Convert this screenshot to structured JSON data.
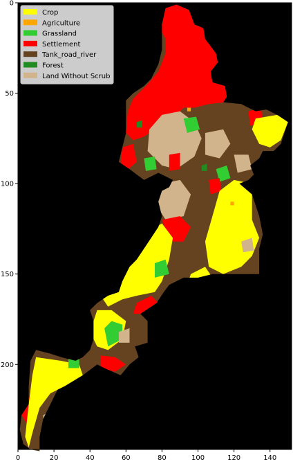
{
  "chart_data": {
    "type": "heatmap",
    "title": "",
    "xlabel": "",
    "ylabel": "",
    "xlim": [
      0,
      152
    ],
    "ylim": [
      247,
      0
    ],
    "x_ticks": [
      0,
      20,
      40,
      60,
      80,
      100,
      120,
      140
    ],
    "y_ticks": [
      0,
      50,
      100,
      150,
      200
    ],
    "background_color": "#000000",
    "grid": false,
    "legend_position": "top-left",
    "classes": [
      {
        "name": "Crop",
        "color": "#ffff00"
      },
      {
        "name": "Agriculture",
        "color": "#ffa500"
      },
      {
        "name": "Grassland",
        "color": "#32cd32"
      },
      {
        "name": "Settlement",
        "color": "#ff0000"
      },
      {
        "name": "Tank_road_river",
        "color": "#654321"
      },
      {
        "name": "Forest",
        "color": "#228b22"
      },
      {
        "name": "Land Without Scrub",
        "color": "#d2b48c"
      }
    ],
    "regions": [
      {
        "class": "Settlement",
        "polygon": [
          [
            78,
            13
          ],
          [
            82,
            3
          ],
          [
            88,
            1
          ],
          [
            95,
            4
          ],
          [
            98,
            12
          ],
          [
            103,
            14
          ],
          [
            104,
            20
          ],
          [
            110,
            28
          ],
          [
            111,
            33
          ],
          [
            107,
            38
          ],
          [
            108,
            44
          ],
          [
            115,
            46
          ],
          [
            116,
            52
          ],
          [
            115,
            55
          ],
          [
            106,
            56
          ],
          [
            98,
            58
          ],
          [
            92,
            58
          ],
          [
            88,
            62
          ],
          [
            82,
            66
          ],
          [
            76,
            70
          ],
          [
            70,
            74
          ],
          [
            64,
            76
          ],
          [
            60,
            72
          ],
          [
            61,
            60
          ],
          [
            64,
            53
          ],
          [
            72,
            45
          ],
          [
            78,
            38
          ],
          [
            82,
            28
          ],
          [
            82,
            20
          ]
        ]
      },
      {
        "class": "Land Without Scrub",
        "polygon": [
          [
            80,
            62
          ],
          [
            90,
            60
          ],
          [
            98,
            66
          ],
          [
            102,
            75
          ],
          [
            98,
            85
          ],
          [
            88,
            92
          ],
          [
            80,
            90
          ],
          [
            72,
            82
          ],
          [
            73,
            70
          ]
        ]
      },
      {
        "class": "Land Without Scrub",
        "polygon": [
          [
            104,
            72
          ],
          [
            114,
            70
          ],
          [
            118,
            78
          ],
          [
            112,
            86
          ],
          [
            104,
            84
          ]
        ]
      },
      {
        "class": "Land Without Scrub",
        "polygon": [
          [
            80,
            100
          ],
          [
            90,
            98
          ],
          [
            96,
            106
          ],
          [
            92,
            118
          ],
          [
            82,
            120
          ],
          [
            77,
            112
          ]
        ]
      },
      {
        "class": "Land Without Scrub",
        "polygon": [
          [
            120,
            84
          ],
          [
            128,
            84
          ],
          [
            130,
            92
          ],
          [
            122,
            94
          ]
        ]
      },
      {
        "class": "Grassland",
        "polygon": [
          [
            92,
            64
          ],
          [
            99,
            63
          ],
          [
            101,
            70
          ],
          [
            94,
            72
          ]
        ]
      },
      {
        "class": "Grassland",
        "polygon": [
          [
            110,
            92
          ],
          [
            116,
            90
          ],
          [
            118,
            97
          ],
          [
            112,
            99
          ]
        ]
      },
      {
        "class": "Grassland",
        "polygon": [
          [
            70,
            86
          ],
          [
            76,
            85
          ],
          [
            77,
            92
          ],
          [
            71,
            93
          ]
        ]
      },
      {
        "class": "Settlement",
        "polygon": [
          [
            58,
            80
          ],
          [
            64,
            78
          ],
          [
            66,
            88
          ],
          [
            60,
            93
          ],
          [
            57,
            88
          ]
        ]
      },
      {
        "class": "Settlement",
        "polygon": [
          [
            84,
            84
          ],
          [
            90,
            83
          ],
          [
            90,
            92
          ],
          [
            84,
            93
          ]
        ]
      },
      {
        "class": "Settlement",
        "polygon": [
          [
            106,
            98
          ],
          [
            112,
            97
          ],
          [
            113,
            104
          ],
          [
            107,
            106
          ]
        ]
      },
      {
        "class": "Settlement",
        "polygon": [
          [
            128,
            60
          ],
          [
            135,
            58
          ],
          [
            136,
            66
          ],
          [
            129,
            68
          ]
        ]
      },
      {
        "class": "Settlement",
        "polygon": [
          [
            80,
            120
          ],
          [
            90,
            118
          ],
          [
            96,
            124
          ],
          [
            92,
            132
          ],
          [
            84,
            132
          ]
        ]
      },
      {
        "class": "Settlement",
        "polygon": [
          [
            66,
            166
          ],
          [
            74,
            162
          ],
          [
            78,
            166
          ],
          [
            70,
            172
          ],
          [
            64,
            172
          ]
        ]
      },
      {
        "class": "Settlement",
        "polygon": [
          [
            46,
            195
          ],
          [
            54,
            196
          ],
          [
            60,
            200
          ],
          [
            54,
            204
          ],
          [
            46,
            202
          ]
        ]
      },
      {
        "class": "Settlement",
        "polygon": [
          [
            6,
            218
          ],
          [
            8,
            218
          ],
          [
            9,
            230
          ],
          [
            5,
            233
          ],
          [
            2,
            228
          ]
        ]
      },
      {
        "class": "Crop",
        "polygon": [
          [
            112,
            104
          ],
          [
            120,
            98
          ],
          [
            130,
            100
          ],
          [
            130,
            120
          ],
          [
            134,
            130
          ],
          [
            130,
            140
          ],
          [
            124,
            146
          ],
          [
            114,
            150
          ],
          [
            106,
            146
          ],
          [
            104,
            132
          ],
          [
            108,
            118
          ]
        ]
      },
      {
        "class": "Crop",
        "polygon": [
          [
            70,
            128
          ],
          [
            80,
            122
          ],
          [
            86,
            130
          ],
          [
            84,
            142
          ],
          [
            80,
            154
          ],
          [
            76,
            160
          ],
          [
            66,
            162
          ],
          [
            58,
            164
          ],
          [
            50,
            168
          ],
          [
            46,
            162
          ],
          [
            52,
            154
          ],
          [
            60,
            146
          ],
          [
            64,
            138
          ]
        ]
      },
      {
        "class": "Crop",
        "polygon": [
          [
            44,
            170
          ],
          [
            52,
            170
          ],
          [
            60,
            176
          ],
          [
            58,
            186
          ],
          [
            50,
            192
          ],
          [
            44,
            190
          ],
          [
            40,
            182
          ]
        ]
      },
      {
        "class": "Crop",
        "polygon": [
          [
            10,
            196
          ],
          [
            24,
            198
          ],
          [
            34,
            200
          ],
          [
            36,
            206
          ],
          [
            26,
            212
          ],
          [
            18,
            216
          ],
          [
            12,
            224
          ],
          [
            8,
            238
          ],
          [
            6,
            246
          ],
          [
            4,
            240
          ],
          [
            6,
            222
          ],
          [
            8,
            206
          ]
        ]
      },
      {
        "class": "Crop",
        "polygon": [
          [
            132,
            64
          ],
          [
            144,
            62
          ],
          [
            150,
            66
          ],
          [
            146,
            76
          ],
          [
            140,
            80
          ],
          [
            134,
            78
          ],
          [
            130,
            70
          ]
        ]
      },
      {
        "class": "Crop",
        "polygon": [
          [
            96,
            150
          ],
          [
            104,
            146
          ],
          [
            108,
            152
          ],
          [
            102,
            158
          ],
          [
            94,
            156
          ]
        ]
      },
      {
        "class": "Grassland",
        "polygon": [
          [
            48,
            180
          ],
          [
            52,
            176
          ],
          [
            58,
            178
          ],
          [
            58,
            186
          ],
          [
            50,
            190
          ]
        ]
      },
      {
        "class": "Grassland",
        "polygon": [
          [
            76,
            144
          ],
          [
            82,
            142
          ],
          [
            84,
            150
          ],
          [
            76,
            152
          ]
        ]
      },
      {
        "class": "Grassland",
        "polygon": [
          [
            28,
            196
          ],
          [
            34,
            196
          ],
          [
            34,
            202
          ],
          [
            28,
            202
          ]
        ]
      },
      {
        "class": "Land Without Scrub",
        "polygon": [
          [
            56,
            182
          ],
          [
            62,
            180
          ],
          [
            62,
            188
          ],
          [
            56,
            188
          ]
        ]
      },
      {
        "class": "Land Without Scrub",
        "polygon": [
          [
            14,
            228
          ],
          [
            18,
            226
          ],
          [
            19,
            232
          ],
          [
            14,
            233
          ]
        ]
      },
      {
        "class": "Land Without Scrub",
        "polygon": [
          [
            124,
            132
          ],
          [
            130,
            130
          ],
          [
            131,
            137
          ],
          [
            125,
            138
          ]
        ]
      },
      {
        "class": "Forest",
        "polygon": [
          [
            66,
            66
          ],
          [
            69,
            65
          ],
          [
            69,
            69
          ],
          [
            66,
            69
          ]
        ]
      },
      {
        "class": "Forest",
        "polygon": [
          [
            102,
            90
          ],
          [
            105,
            89
          ],
          [
            105,
            93
          ],
          [
            102,
            93
          ]
        ]
      },
      {
        "class": "Agriculture",
        "polygon": [
          [
            94,
            58
          ],
          [
            96,
            58
          ],
          [
            96,
            60
          ],
          [
            94,
            60
          ]
        ]
      },
      {
        "class": "Agriculture",
        "polygon": [
          [
            118,
            110
          ],
          [
            120,
            110
          ],
          [
            120,
            112
          ],
          [
            118,
            112
          ]
        ]
      }
    ],
    "study_area": {
      "base_class": "Tank_road_river",
      "polygon": [
        [
          80,
          12
        ],
        [
          82,
          3
        ],
        [
          88,
          1
        ],
        [
          95,
          4
        ],
        [
          98,
          12
        ],
        [
          103,
          14
        ],
        [
          104,
          20
        ],
        [
          110,
          28
        ],
        [
          111,
          33
        ],
        [
          107,
          38
        ],
        [
          108,
          44
        ],
        [
          115,
          46
        ],
        [
          116,
          52
        ],
        [
          114,
          55
        ],
        [
          124,
          56
        ],
        [
          132,
          60
        ],
        [
          138,
          59
        ],
        [
          144,
          62
        ],
        [
          150,
          66
        ],
        [
          148,
          72
        ],
        [
          146,
          78
        ],
        [
          142,
          82
        ],
        [
          136,
          82
        ],
        [
          134,
          86
        ],
        [
          129,
          90
        ],
        [
          131,
          95
        ],
        [
          128,
          98
        ],
        [
          123,
          100
        ],
        [
          130,
          106
        ],
        [
          134,
          118
        ],
        [
          136,
          128
        ],
        [
          134,
          136
        ],
        [
          134,
          150
        ],
        [
          122,
          150
        ],
        [
          108,
          150
        ],
        [
          100,
          152
        ],
        [
          92,
          152
        ],
        [
          84,
          156
        ],
        [
          81,
          160
        ],
        [
          77,
          166
        ],
        [
          68,
          172
        ],
        [
          72,
          176
        ],
        [
          72,
          188
        ],
        [
          65,
          190
        ],
        [
          67,
          196
        ],
        [
          62,
          200
        ],
        [
          57,
          206
        ],
        [
          48,
          202
        ],
        [
          44,
          200
        ],
        [
          36,
          206
        ],
        [
          26,
          212
        ],
        [
          22,
          214
        ],
        [
          18,
          222
        ],
        [
          14,
          230
        ],
        [
          12,
          240
        ],
        [
          12,
          248
        ],
        [
          7,
          247
        ],
        [
          3,
          244
        ],
        [
          1,
          236
        ],
        [
          2,
          228
        ],
        [
          6,
          222
        ],
        [
          6,
          212
        ],
        [
          7,
          198
        ],
        [
          10,
          192
        ],
        [
          18,
          194
        ],
        [
          24,
          196
        ],
        [
          32,
          198
        ],
        [
          36,
          196
        ],
        [
          40,
          192
        ],
        [
          42,
          186
        ],
        [
          42,
          176
        ],
        [
          40,
          170
        ],
        [
          44,
          166
        ],
        [
          50,
          162
        ],
        [
          56,
          160
        ],
        [
          58,
          154
        ],
        [
          62,
          146
        ],
        [
          66,
          142
        ],
        [
          70,
          136
        ],
        [
          74,
          130
        ],
        [
          78,
          124
        ],
        [
          80,
          118
        ],
        [
          78,
          110
        ],
        [
          80,
          104
        ],
        [
          84,
          102
        ],
        [
          86,
          98
        ],
        [
          78,
          94
        ],
        [
          70,
          98
        ],
        [
          62,
          92
        ],
        [
          56,
          88
        ],
        [
          58,
          80
        ],
        [
          60,
          72
        ],
        [
          60,
          62
        ],
        [
          60,
          54
        ],
        [
          64,
          50
        ],
        [
          70,
          46
        ],
        [
          74,
          42
        ],
        [
          78,
          34
        ],
        [
          80,
          26
        ],
        [
          80,
          20
        ]
      ]
    }
  }
}
